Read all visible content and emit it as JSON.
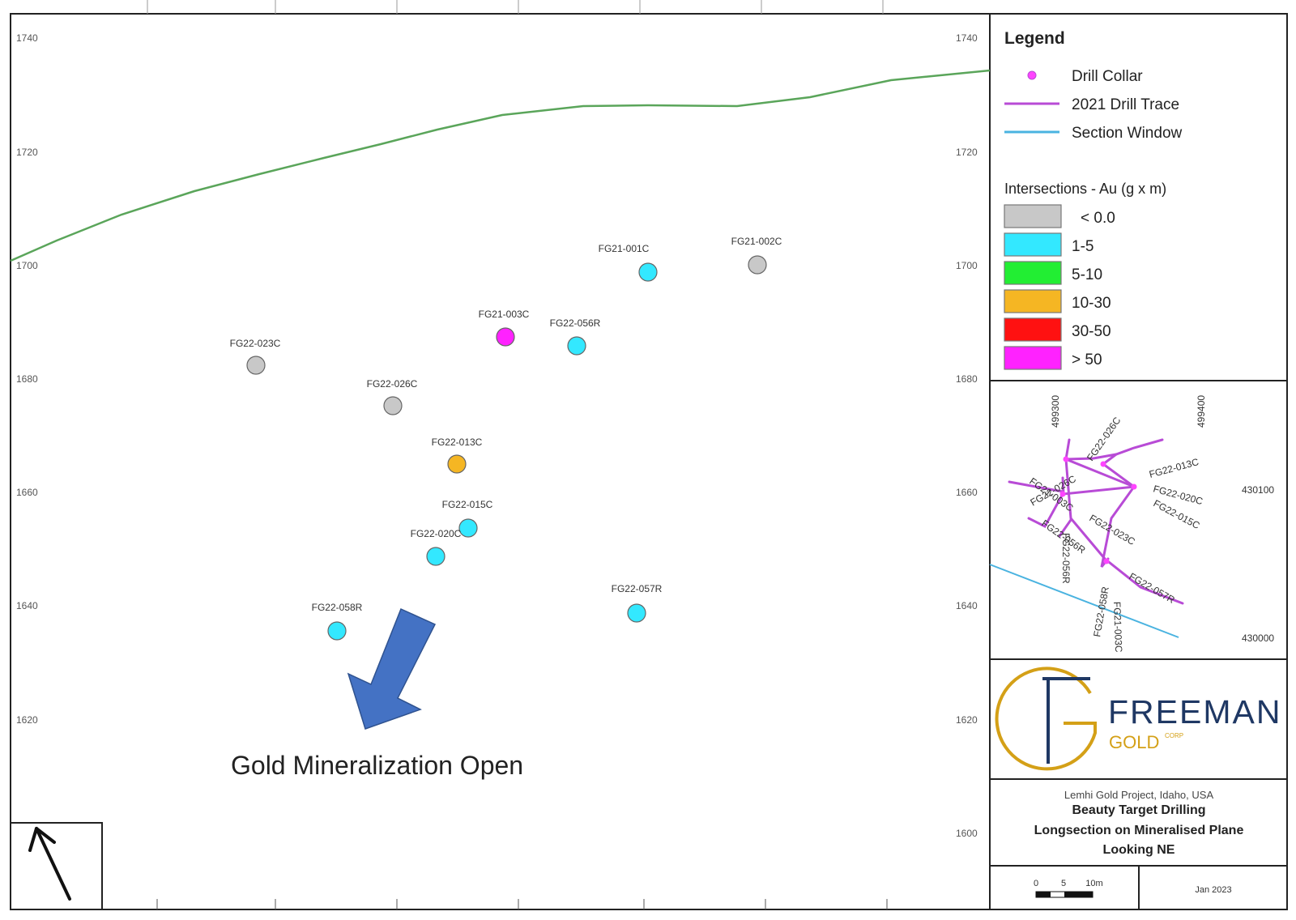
{
  "elevation_ticks": [
    "1740",
    "1720",
    "1700",
    "1680",
    "1660",
    "1640",
    "1620",
    "1600"
  ],
  "legend": {
    "title": "Legend",
    "drill_collar": "Drill Collar",
    "drill_trace": "2021 Drill Trace",
    "section_window": "Section Window",
    "intersections_title": "Intersections - Au (g x m)",
    "classes": [
      {
        "label": "< 0.0",
        "color": "#c8c8c8"
      },
      {
        "label": "1-5",
        "color": "#33e8ff"
      },
      {
        "label": "5-10",
        "color": "#22ee33"
      },
      {
        "label": "10-30",
        "color": "#f5b623"
      },
      {
        "label": "30-50",
        "color": "#ff1111"
      },
      {
        "label": "> 50",
        "color": "#ff22ff"
      }
    ]
  },
  "colors": {
    "topography": "#5aa55a",
    "drill_trace": "#b84bd6",
    "section_window": "#4ab3e0",
    "arrow": "#4472c4",
    "logo_gold": "#d4a017",
    "logo_navy": "#1f3864"
  },
  "intersections": [
    {
      "id": "FG21-001C",
      "class": "1-5"
    },
    {
      "id": "FG21-002C",
      "class": "< 0.0"
    },
    {
      "id": "FG21-003C",
      "class": "> 50"
    },
    {
      "id": "FG22-056R",
      "class": "1-5"
    },
    {
      "id": "FG22-023C",
      "class": "< 0.0"
    },
    {
      "id": "FG22-026C",
      "class": "< 0.0"
    },
    {
      "id": "FG22-013C",
      "class": "10-30"
    },
    {
      "id": "FG22-015C",
      "class": "1-5"
    },
    {
      "id": "FG22-020C",
      "class": "1-5"
    },
    {
      "id": "FG22-057R",
      "class": "1-5"
    },
    {
      "id": "FG22-058R",
      "class": "1-5"
    }
  ],
  "annotation": "Gold Mineralization Open",
  "inset": {
    "easting_labels": [
      "499300",
      "499400"
    ],
    "northing_labels": [
      "430100",
      "430000"
    ],
    "trace_labels": [
      "FG22-013C",
      "FG22-020C",
      "FG22-015C",
      "FG22-023C",
      "FG22-056R",
      "FG22-058R",
      "FG22-057R",
      "FG21-003C",
      "FG22-026C",
      "FG22-026C",
      "FG22-056R",
      "FG21-003C"
    ]
  },
  "logo": {
    "name": "FREEMAN",
    "sub": "GOLD",
    "suffix": "CORP"
  },
  "title_block": {
    "project": "Lemhi Gold Project, Idaho, USA",
    "line1": "Beauty Target Drilling",
    "line2": "Longsection on Mineralised Plane",
    "line3": "Looking NE"
  },
  "scale_bar": {
    "ticks": [
      "0",
      "5",
      "10m"
    ]
  },
  "date": "Jan 2023"
}
